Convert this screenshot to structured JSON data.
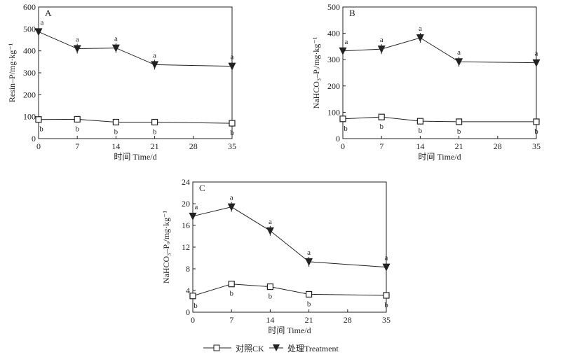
{
  "chart_data": [
    {
      "type": "line",
      "panel_label": "A",
      "ylabel": "Resin–P/mg·kg⁻¹",
      "xlabel": "时间 Time/d",
      "xlim": [
        0,
        35
      ],
      "ylim": [
        0,
        600
      ],
      "xticks": [
        0,
        7,
        14,
        21,
        28,
        35
      ],
      "yticks": [
        0,
        100,
        200,
        300,
        400,
        500,
        600
      ],
      "series": [
        {
          "name": "对照CK",
          "marker": "square-open",
          "x": [
            0,
            7,
            14,
            21,
            35
          ],
          "values": [
            87,
            88,
            75,
            75,
            70
          ],
          "labels": [
            "b",
            "b",
            "b",
            "b",
            "b"
          ]
        },
        {
          "name": "处理Treatment",
          "marker": "triangle-down-filled",
          "x": [
            0,
            7,
            14,
            21,
            35
          ],
          "values": [
            487,
            410,
            413,
            337,
            330
          ],
          "labels": [
            "a",
            "a",
            "a",
            "a",
            "a"
          ]
        }
      ]
    },
    {
      "type": "line",
      "panel_label": "B",
      "ylabel": "NaHCO₃–Pᵢ/mg·kg⁻¹",
      "xlabel": "时间 Time/d",
      "xlim": [
        0,
        35
      ],
      "ylim": [
        0,
        500
      ],
      "xticks": [
        0,
        7,
        14,
        21,
        28,
        35
      ],
      "yticks": [
        0,
        100,
        200,
        300,
        400,
        500
      ],
      "series": [
        {
          "name": "对照CK",
          "marker": "square-open",
          "x": [
            0,
            7,
            14,
            21,
            35
          ],
          "values": [
            75,
            82,
            66,
            64,
            64
          ],
          "labels": [
            "b",
            "b",
            "b",
            "b",
            "b"
          ]
        },
        {
          "name": "处理Treatment",
          "marker": "triangle-down-filled",
          "x": [
            0,
            7,
            14,
            21,
            35
          ],
          "values": [
            333,
            340,
            383,
            292,
            288
          ],
          "labels": [
            "a",
            "a",
            "a",
            "a",
            "a"
          ]
        }
      ]
    },
    {
      "type": "line",
      "panel_label": "C",
      "ylabel": "NaHCO₃–Pₒ/mg·kg⁻¹",
      "xlabel": "时间 Time/d",
      "xlim": [
        0,
        35
      ],
      "ylim": [
        0,
        24
      ],
      "xticks": [
        0,
        7,
        14,
        21,
        28,
        35
      ],
      "yticks": [
        0,
        4,
        8,
        12,
        16,
        20,
        24
      ],
      "series": [
        {
          "name": "对照CK",
          "marker": "square-open",
          "x": [
            0,
            7,
            14,
            21,
            35
          ],
          "values": [
            3.0,
            5.2,
            4.7,
            3.3,
            3.1
          ],
          "labels": [
            "b",
            "b",
            "b",
            "b",
            "b"
          ]
        },
        {
          "name": "处理Treatment",
          "marker": "triangle-down-filled",
          "x": [
            0,
            7,
            14,
            21,
            35
          ],
          "values": [
            17.7,
            19.4,
            15.0,
            9.3,
            8.3
          ],
          "labels": [
            "a",
            "a",
            "a",
            "a",
            "a"
          ]
        }
      ]
    }
  ],
  "legend": {
    "items": [
      {
        "label": "对照CK",
        "marker": "square-open"
      },
      {
        "label": "处理Treatment",
        "marker": "triangle-down-filled"
      }
    ]
  }
}
